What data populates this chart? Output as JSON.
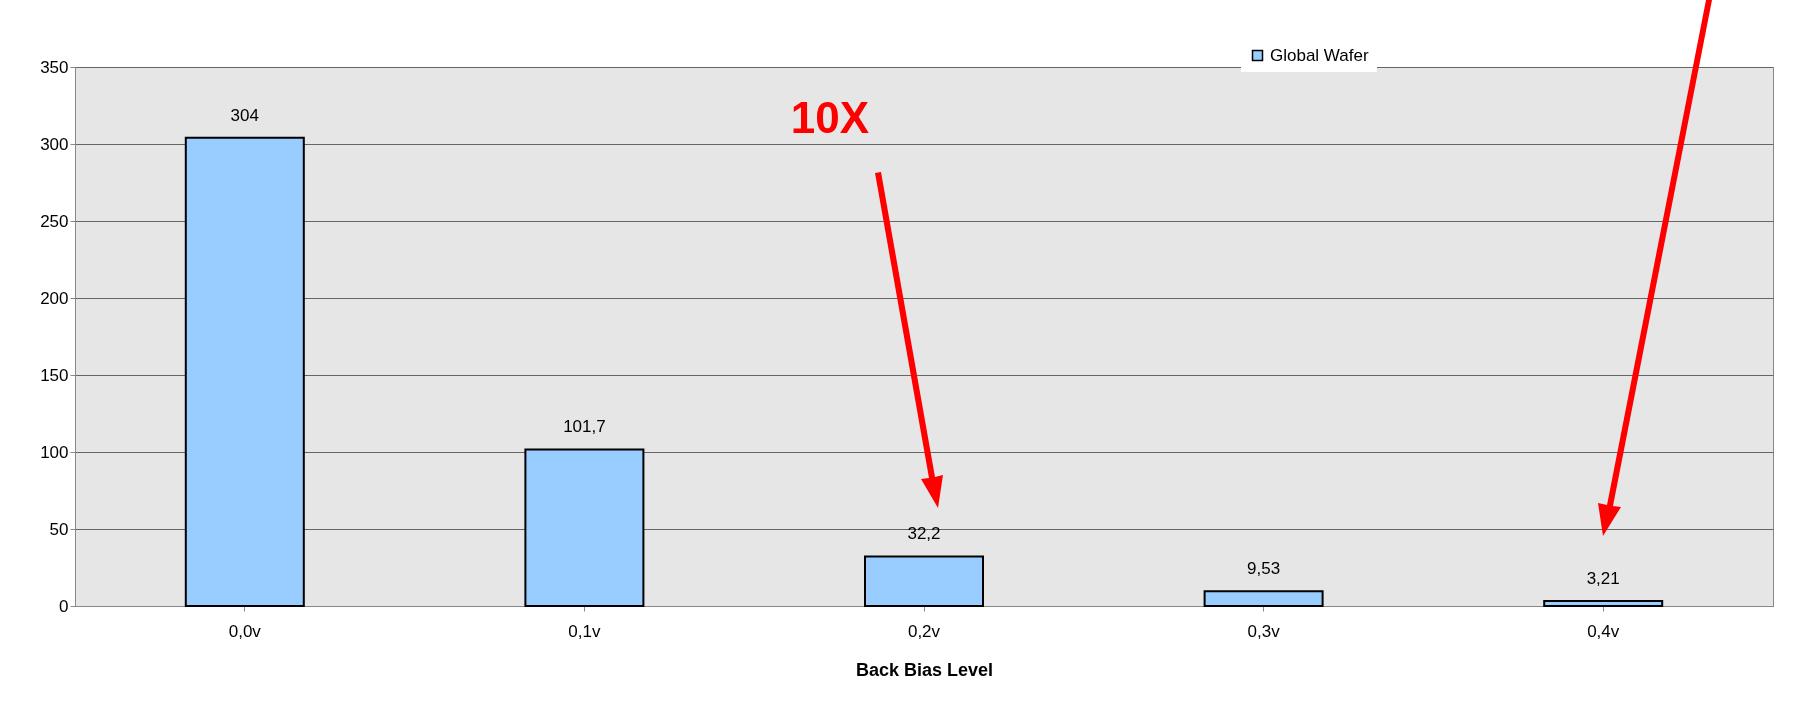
{
  "chart_data": {
    "type": "bar",
    "categories": [
      "0,0v",
      "0,1v",
      "0,2v",
      "0,3v",
      "0,4v"
    ],
    "series": [
      {
        "name": "Global Wafer",
        "color": "#99ccff",
        "values": [
          304,
          101.7,
          32.2,
          9.53,
          3.21
        ],
        "value_labels": [
          "304",
          "101,7",
          "32,2",
          "9,53",
          "3,21"
        ]
      }
    ],
    "xlabel": "Back Bias Level",
    "ylim": [
      0,
      350
    ],
    "yticks": [
      0,
      50,
      100,
      150,
      200,
      250,
      300,
      350
    ],
    "grid": "y",
    "legend": "top right",
    "annotations": [
      "10X"
    ]
  }
}
